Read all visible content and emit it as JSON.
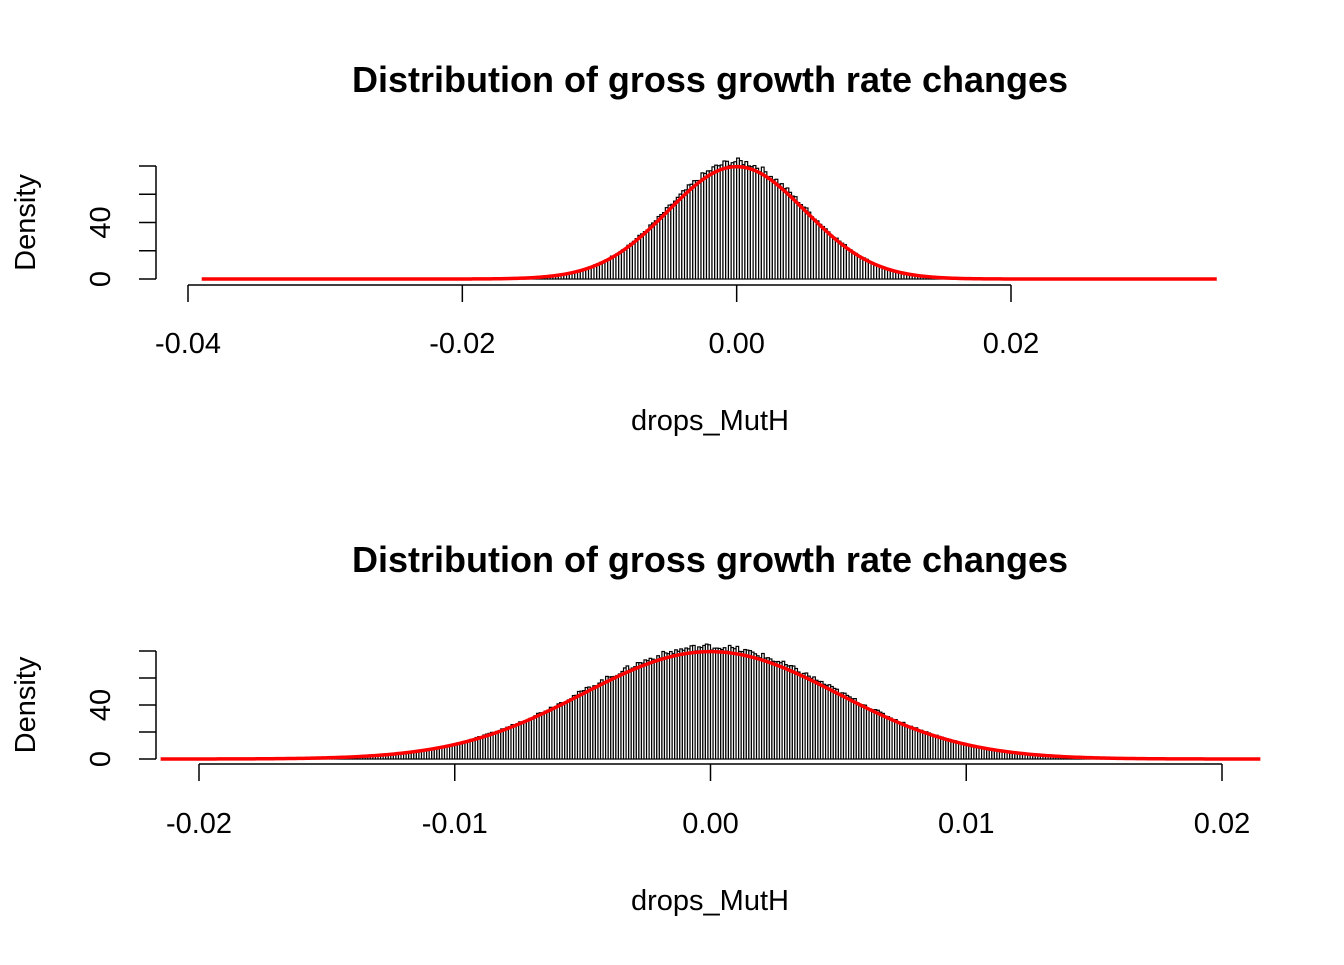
{
  "chart_data": [
    {
      "type": "histogram",
      "title": "Distribution of gross growth rate changes",
      "xlabel": "drops_MutH",
      "ylabel": "Density",
      "xlim": [
        -0.04,
        0.035
      ],
      "ylim": [
        0,
        80
      ],
      "x_ticks": [
        -0.04,
        -0.02,
        0.0,
        0.02
      ],
      "x_tick_labels": [
        "-0.04",
        "-0.02",
        "0.00",
        "0.02"
      ],
      "y_ticks": [
        0,
        20,
        40,
        60,
        80
      ],
      "y_tick_labels": [
        "0",
        "",
        "40",
        "",
        ""
      ],
      "data_range": [
        -0.039,
        0.035
      ],
      "bin_width": 0.0002,
      "density_fit": {
        "type": "normal",
        "mean": 0.0,
        "sd": 0.005,
        "color": "#ff0000"
      },
      "histogram_shape": {
        "mean": 0.0,
        "sd": 0.005,
        "peak_density": 82
      },
      "bar_color": "#000000",
      "grid": false
    },
    {
      "type": "histogram",
      "title": "Distribution of gross growth rate changes",
      "xlabel": "drops_MutH",
      "ylabel": "Density",
      "xlim": [
        -0.022,
        0.022
      ],
      "ylim": [
        0,
        80
      ],
      "x_ticks": [
        -0.02,
        -0.01,
        0.0,
        0.01,
        0.02
      ],
      "x_tick_labels": [
        "-0.02",
        "-0.01",
        "0.00",
        "0.01",
        "0.02"
      ],
      "y_ticks": [
        0,
        20,
        40,
        60,
        80
      ],
      "y_tick_labels": [
        "0",
        "",
        "40",
        "",
        ""
      ],
      "data_range": [
        -0.0215,
        0.0215
      ],
      "bin_width": 0.0001,
      "density_fit": {
        "type": "normal",
        "mean": 0.0,
        "sd": 0.005,
        "color": "#ff0000"
      },
      "histogram_shape": {
        "mean": 0.0,
        "sd": 0.005,
        "peak_density": 82
      },
      "bar_color": "#000000",
      "grid": false
    }
  ]
}
